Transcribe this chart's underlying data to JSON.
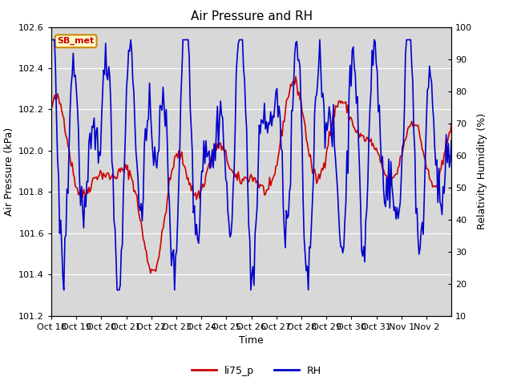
{
  "title": "Air Pressure and RH",
  "xlabel": "Time",
  "ylabel_left": "Air Pressure (kPa)",
  "ylabel_right": "Relativity Humidity (%)",
  "ylim_left": [
    101.2,
    102.6
  ],
  "ylim_right": [
    10,
    100
  ],
  "yticks_left": [
    101.2,
    101.4,
    101.6,
    101.8,
    102.0,
    102.2,
    102.4,
    102.6
  ],
  "yticks_right": [
    10,
    20,
    30,
    40,
    50,
    60,
    70,
    80,
    90,
    100
  ],
  "xtick_labels": [
    "Oct 18",
    "Oct 19",
    "Oct 20",
    "Oct 21",
    "Oct 22",
    "Oct 23",
    "Oct 24",
    "Oct 25",
    "Oct 26",
    "Oct 27",
    "Oct 28",
    "Oct 29",
    "Oct 30",
    "Oct 31",
    "Nov 1",
    "Nov 2"
  ],
  "color_pressure": "#cc0000",
  "color_rh": "#0000cc",
  "bg_color": "#d8d8d8",
  "fig_bg_color": "#ffffff",
  "label_box_facecolor": "#ffffcc",
  "label_box_edgecolor": "#cc8800",
  "label_box_text": "SB_met",
  "label_box_textcolor": "#cc0000",
  "legend_labels": [
    "li75_p",
    "RH"
  ],
  "linewidth": 1.2,
  "title_fontsize": 11,
  "axis_label_fontsize": 9,
  "tick_fontsize": 8,
  "legend_fontsize": 9
}
